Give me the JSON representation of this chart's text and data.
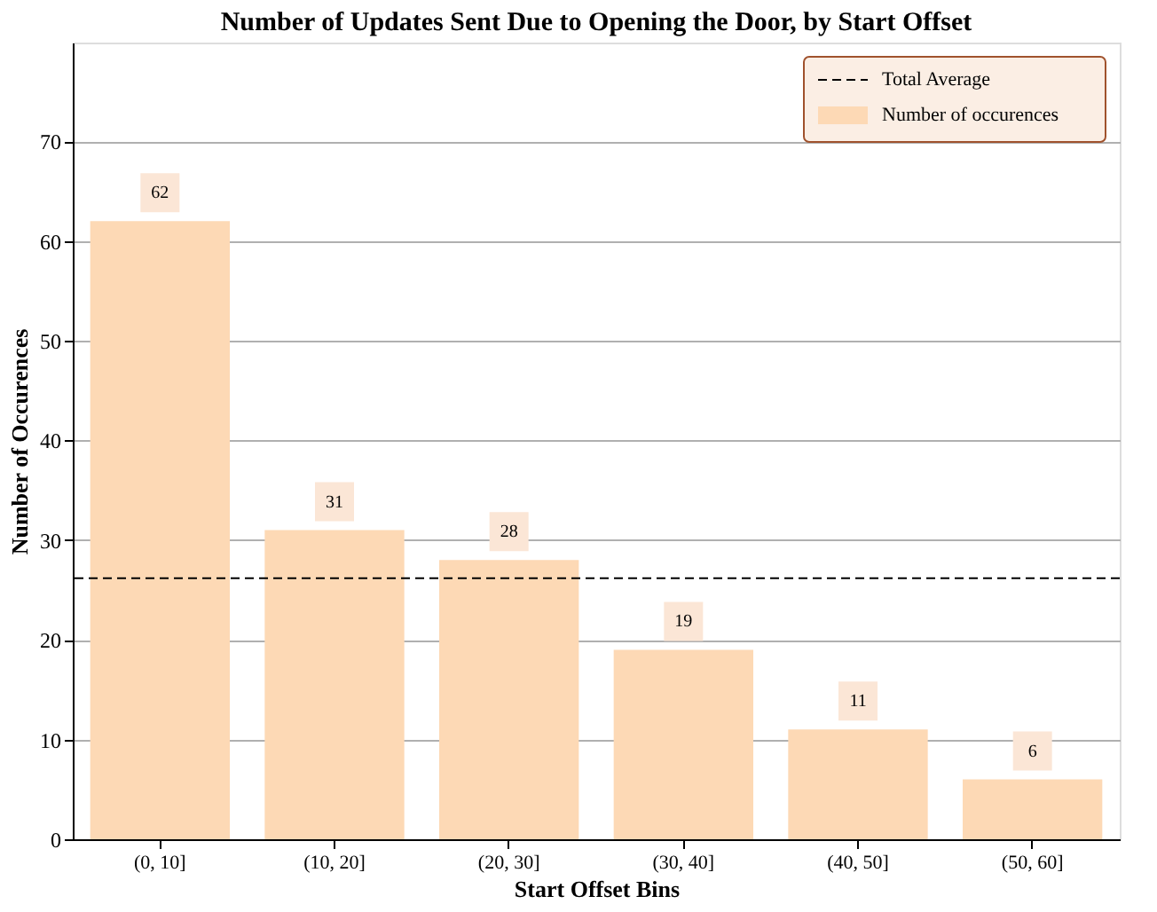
{
  "chart_data": {
    "type": "bar",
    "title": "Number of Updates Sent Due to Opening the Door, by Start Offset",
    "xlabel": "Start Offset Bins",
    "ylabel": "Number of Occurences",
    "categories": [
      "(0, 10]",
      "(10, 20]",
      "(20, 30]",
      "(30, 40]",
      "(40, 50]",
      "(50, 60]"
    ],
    "series": [
      {
        "name": "Number of occurences",
        "color": "#fdd9b5",
        "values": [
          62,
          31,
          28,
          19,
          11,
          6
        ]
      }
    ],
    "ylim": [
      0,
      79.9
    ],
    "yticks": [
      0,
      10,
      20,
      30,
      40,
      50,
      60,
      70
    ],
    "grid": "y",
    "data_labels": true,
    "legend": "top right",
    "ref_lines": [
      {
        "axis": "y",
        "value": 26.17,
        "label": "Total Average",
        "color": "#000000",
        "line_style": "dashed"
      }
    ]
  }
}
